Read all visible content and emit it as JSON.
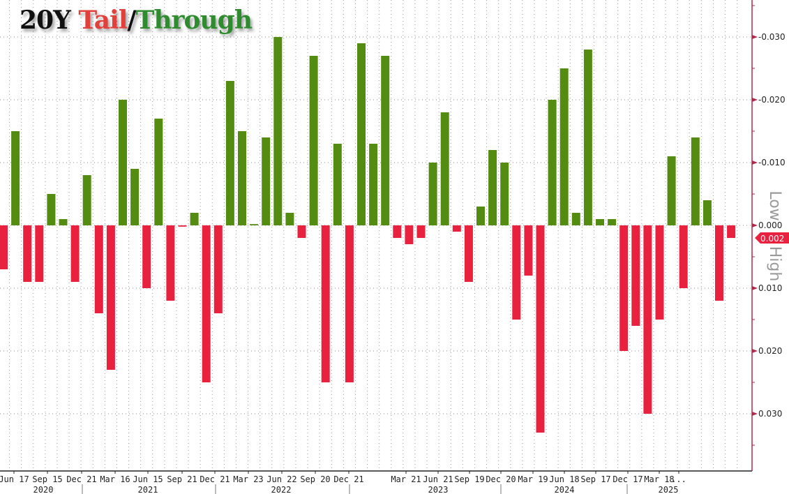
{
  "chart_data": {
    "type": "bar",
    "title": {
      "prefix": "20Y",
      "tail": "Tail",
      "sep": "/",
      "through": "Through"
    },
    "ylabel_low": "Low",
    "ylabel_high": "High",
    "ylim": [
      -0.038,
      0.038
    ],
    "y_inverted": true,
    "yticks": [
      "-0.030",
      "-0.020",
      "-0.010",
      "0.000",
      "0.010",
      "0.020",
      "0.030"
    ],
    "ytick_values": [
      -0.03,
      -0.02,
      -0.01,
      0,
      0.01,
      0.02,
      0.03
    ],
    "last_value_label": "0.002",
    "grid": true,
    "xtick_labels": [
      "Jun 17",
      "Sep 15",
      "Dec 21",
      "Mar 16",
      "Jun 15",
      "Sep 21",
      "Dec 21",
      "Mar 23",
      "Jun 22",
      "Sep 20",
      "Dec 21",
      "Mar 21",
      "Jun 21",
      "Sep 19",
      "Dec 20",
      "Mar 19",
      "Jun 18",
      "Sep 17",
      "Dec 17",
      "Mar 18",
      "..."
    ],
    "year_labels": [
      "2020",
      "2021",
      "2022",
      "2023",
      "2024",
      "2025"
    ],
    "values": [
      0.007,
      -0.015,
      0.009,
      0.009,
      -0.005,
      -0.001,
      0.009,
      -0.008,
      0.014,
      0.023,
      -0.02,
      -0.009,
      0.01,
      -0.017,
      0.012,
      0.0002,
      -0.002,
      0.025,
      0.014,
      -0.023,
      -0.015,
      -0.0002,
      -0.014,
      -0.03,
      -0.002,
      0.002,
      -0.027,
      0.025,
      -0.013,
      0.025,
      -0.029,
      -0.013,
      -0.027,
      0.002,
      0.003,
      0.002,
      -0.01,
      -0.018,
      0.001,
      0.009,
      -0.003,
      -0.012,
      -0.01,
      0.015,
      0.008,
      0.033,
      -0.02,
      -0.025,
      -0.002,
      -0.028,
      -0.001,
      -0.001,
      0.02,
      0.016,
      0.03,
      0.015,
      -0.011,
      0.01,
      -0.014,
      -0.004,
      0.012,
      0.002
    ],
    "colors": {
      "tail": "#e8213f",
      "through": "#548c12",
      "axis": "#b0284a",
      "grid": "#888888"
    }
  }
}
